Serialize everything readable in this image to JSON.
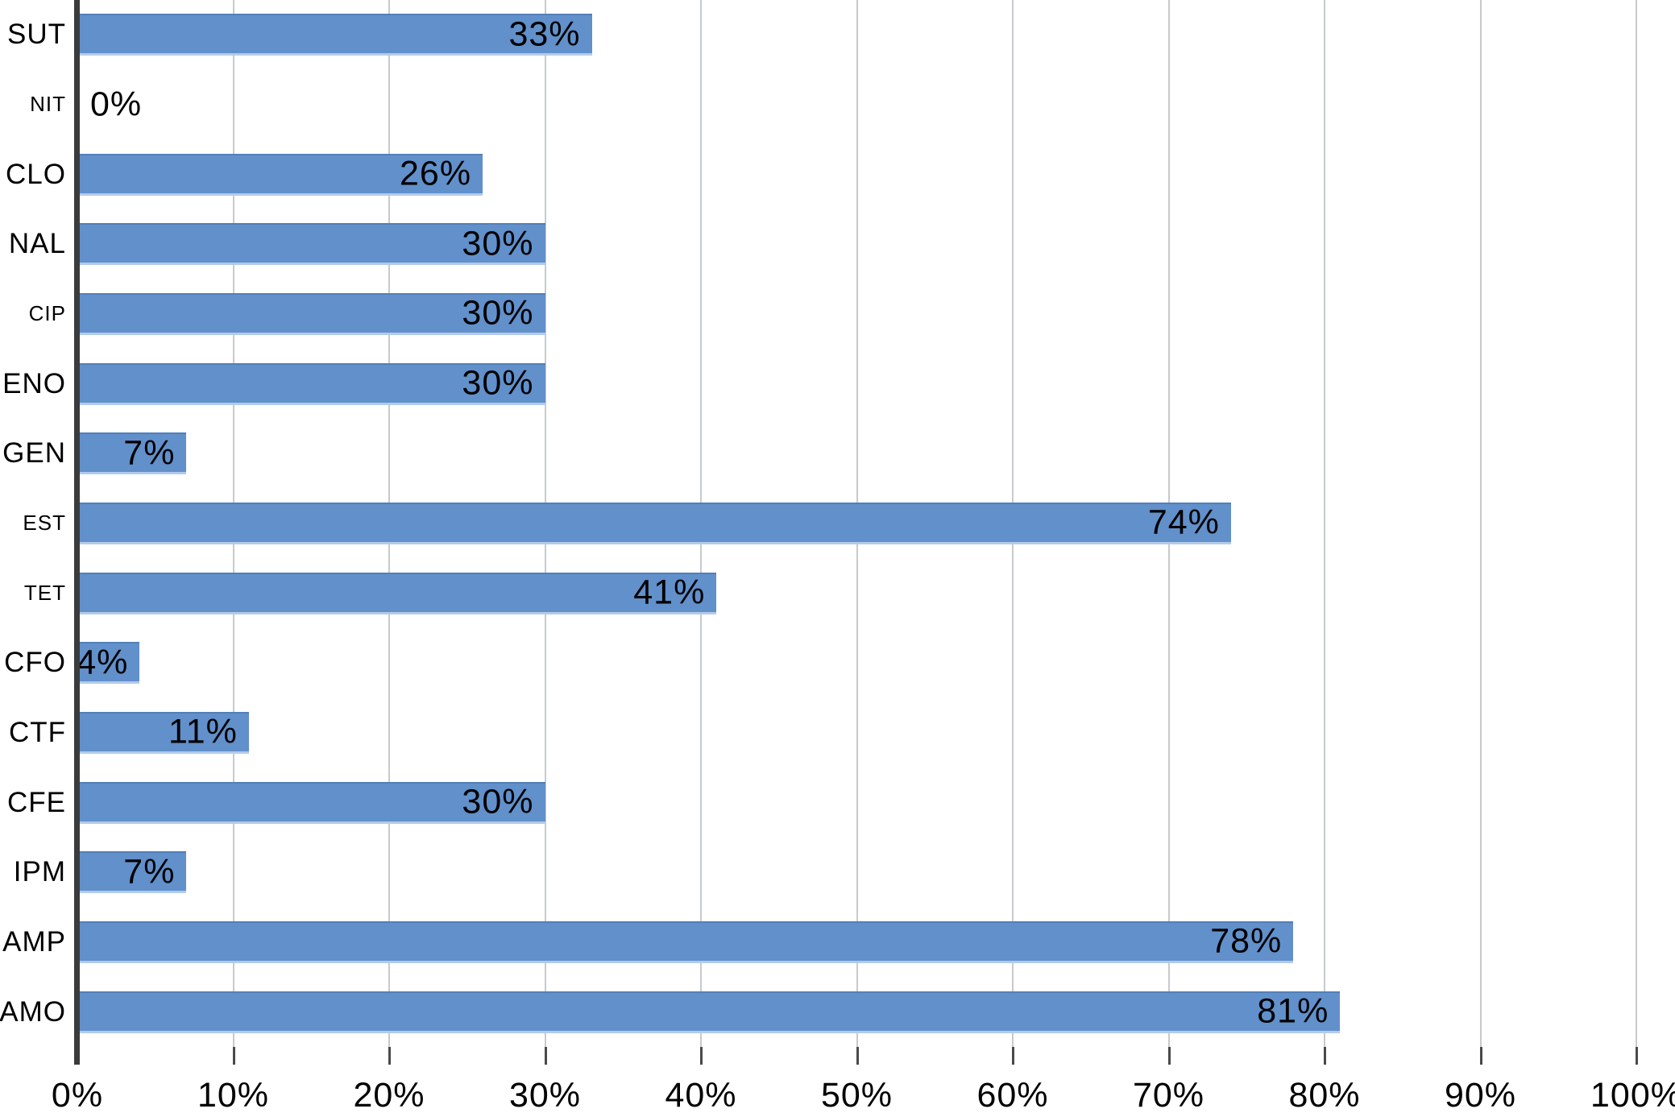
{
  "chart_data": {
    "type": "bar",
    "orientation": "horizontal",
    "title": "",
    "xlabel": "",
    "ylabel": "",
    "xlim": [
      0,
      100
    ],
    "x_tick_step": 10,
    "x_tick_labels": [
      "0%",
      "10%",
      "20%",
      "30%",
      "40%",
      "50%",
      "60%",
      "70%",
      "80%",
      "90%",
      "100%"
    ],
    "grid": "vertical-only",
    "legend": "none",
    "categories": [
      "SUT",
      "NIT",
      "CLO",
      "NAL",
      "CIP",
      "ENO",
      "GEN",
      "EST",
      "TET",
      "CFO",
      "CTF",
      "CFE",
      "IPM",
      "AMP",
      "AMO"
    ],
    "values": [
      33,
      0,
      26,
      30,
      30,
      30,
      7,
      74,
      41,
      4,
      11,
      30,
      7,
      78,
      81
    ],
    "data_labels": [
      "33%",
      "0%",
      "26%",
      "30%",
      "30%",
      "30%",
      "7%",
      "74%",
      "41%",
      "4%",
      "11%",
      "30%",
      "7%",
      "78%",
      "81%"
    ],
    "category_label_sizes": [
      "large",
      "small",
      "large",
      "large",
      "small",
      "large",
      "large",
      "small",
      "small",
      "large",
      "large",
      "large",
      "large",
      "large",
      "large"
    ],
    "colors": {
      "bar_fill": "#6190cb",
      "bar_edge_top": "#527fb9",
      "bar_edge_bottom": "#b3cbe9",
      "axis_line": "#3b3b3b",
      "gridline": "#c7cacd",
      "tick": "#4a4a4a",
      "text": "#000000",
      "background": "#ffffff"
    }
  }
}
